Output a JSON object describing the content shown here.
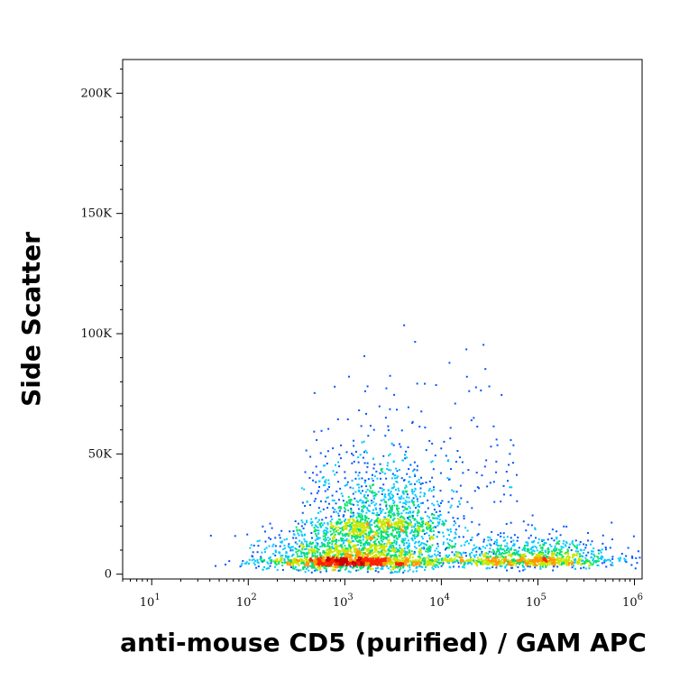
{
  "chart_data": {
    "type": "scatter",
    "subtype": "flow-cytometry density dot plot",
    "title": "",
    "xlabel": "anti-mouse CD5 (purified) / GAM APC",
    "ylabel": "Side Scatter",
    "x_scale": "log",
    "x_range": [
      5,
      1200000
    ],
    "y_range": [
      -2000,
      214000
    ],
    "x_ticks": [
      {
        "base": "10",
        "exp": "1",
        "value": 10
      },
      {
        "base": "10",
        "exp": "2",
        "value": 100
      },
      {
        "base": "10",
        "exp": "3",
        "value": 1000
      },
      {
        "base": "10",
        "exp": "4",
        "value": 10000
      },
      {
        "base": "10",
        "exp": "5",
        "value": 100000
      },
      {
        "base": "10",
        "exp": "6",
        "value": 1000000
      }
    ],
    "y_ticks": [
      {
        "label": "0",
        "value": 0
      },
      {
        "label": "50K",
        "value": 50000
      },
      {
        "label": "100K",
        "value": 100000
      },
      {
        "label": "150K",
        "value": 150000
      },
      {
        "label": "200K",
        "value": 200000
      }
    ],
    "color_scale": [
      "#0000cc",
      "#0055ff",
      "#00c8ff",
      "#00e070",
      "#c8e600",
      "#ff9900",
      "#ff2200",
      "#cc0000"
    ],
    "populations": [
      {
        "name": "",
        "x_center": 1300,
        "y_center": 6000,
        "x_spread_decades": 0.45,
        "y_spread": 8000,
        "density": "high"
      },
      {
        "name": "",
        "x_center": 2500,
        "y_center": 22000,
        "x_spread_decades": 0.35,
        "y_spread": 18000,
        "density": "medium"
      },
      {
        "name": "",
        "x_center": 80000,
        "y_center": 6000,
        "x_spread_decades": 0.45,
        "y_spread": 6000,
        "density": "medium"
      }
    ],
    "grid": false,
    "legend": "none"
  }
}
